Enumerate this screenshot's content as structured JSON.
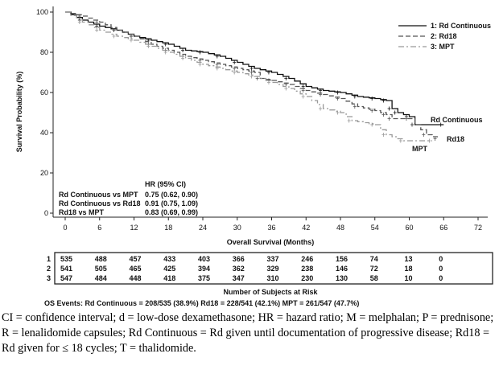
{
  "chart_data": {
    "type": "line",
    "subtype": "kaplan-meier",
    "xlabel": "Overall Survival (Months)",
    "ylabel": "Survival Probability (%)",
    "xlim": [
      0,
      72
    ],
    "ylim": [
      0,
      100
    ],
    "xticks": [
      0,
      6,
      12,
      18,
      24,
      30,
      36,
      42,
      48,
      54,
      60,
      66,
      72
    ],
    "yticks": [
      0,
      20,
      40,
      60,
      80,
      100
    ],
    "legend_position": "top-right",
    "series": [
      {
        "name": "1: Rd Continuous",
        "end_label": "Rd Continuous",
        "color": "#111111",
        "dash": "solid",
        "x": [
          0,
          3,
          6,
          9,
          12,
          15,
          18,
          21,
          24,
          27,
          30,
          33,
          36,
          39,
          42,
          45,
          48,
          51,
          54,
          56,
          57,
          58,
          60,
          61,
          66
        ],
        "y": [
          100,
          96,
          93,
          91,
          88,
          86,
          84,
          81,
          80,
          78,
          75,
          72,
          70,
          67,
          63,
          61,
          60,
          58,
          57,
          56,
          52,
          50,
          48,
          44,
          44
        ]
      },
      {
        "name": "2: Rd18",
        "end_label": "Rd18",
        "color": "#555555",
        "dash": "dashed",
        "x": [
          0,
          3,
          6,
          9,
          12,
          15,
          18,
          21,
          24,
          27,
          30,
          33,
          34,
          36,
          39,
          42,
          45,
          48,
          51,
          54,
          56,
          57,
          60,
          61,
          63,
          65
        ],
        "y": [
          100,
          98,
          95,
          91,
          88,
          84,
          81,
          78,
          76,
          74,
          72,
          70,
          67,
          66,
          64,
          61,
          59,
          57,
          53,
          51,
          49,
          47,
          47,
          44,
          39,
          37
        ]
      },
      {
        "name": "3: MPT",
        "end_label": "MPT",
        "color": "#999999",
        "dash": "dash-dot",
        "x": [
          0,
          3,
          6,
          9,
          12,
          15,
          18,
          21,
          24,
          27,
          30,
          33,
          36,
          39,
          42,
          45,
          48,
          50,
          54,
          56,
          59,
          64
        ],
        "y": [
          100,
          95,
          91,
          88,
          86,
          83,
          80,
          77,
          74,
          72,
          70,
          68,
          65,
          62,
          58,
          52,
          50,
          46,
          44,
          39,
          36,
          36
        ]
      }
    ],
    "hr_table": {
      "header": "HR (95% CI)",
      "rows": [
        {
          "label": "Rd Continuous vs MPT",
          "value": "0.75 (0.62, 0.90)"
        },
        {
          "label": "Rd Continuous vs Rd18",
          "value": "0.91 (0.75, 1.09)"
        },
        {
          "label": "Rd18 vs MPT",
          "value": "0.83 (0.69, 0.99)"
        }
      ]
    },
    "risk_table": {
      "title": "Number of Subjects at Risk",
      "rows": [
        {
          "id": "1",
          "values": [
            "535",
            "488",
            "457",
            "433",
            "403",
            "366",
            "337",
            "246",
            "156",
            "74",
            "13",
            "0"
          ]
        },
        {
          "id": "2",
          "values": [
            "541",
            "505",
            "465",
            "425",
            "394",
            "362",
            "329",
            "238",
            "146",
            "72",
            "18",
            "0"
          ]
        },
        {
          "id": "3",
          "values": [
            "547",
            "484",
            "448",
            "418",
            "375",
            "347",
            "310",
            "230",
            "130",
            "58",
            "10",
            "0"
          ]
        }
      ]
    },
    "events_note": "OS Events: Rd Continuous = 208/535 (38.9%) Rd18 = 228/541 (42.1%) MPT = 261/547 (47.7%)"
  },
  "caption": "CI = confidence interval; d = low-dose dexamethasone; HR = hazard ratio; M = melphalan; P = prednisone; R = lenalidomide capsules; Rd Continuous = Rd given until documentation of progressive disease; Rd18 = Rd given for ≤ 18 cycles; T = thalidomide."
}
